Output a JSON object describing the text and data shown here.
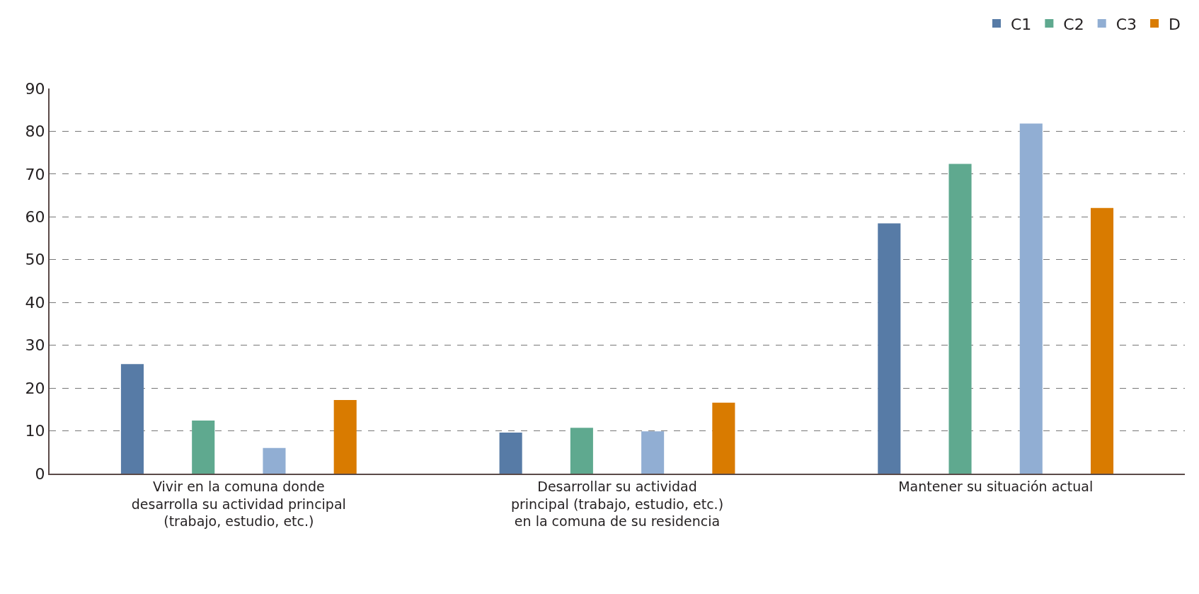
{
  "chart_data": {
    "type": "bar",
    "categories": [
      "Vivir en la comuna donde\ndesarrolla su actividad principal\n(trabajo, estudio, etc.)",
      "Desarrollar su actividad\nprincipal (trabajo, estudio, etc.)\nen la comuna de su residencia",
      "Mantener su situación actual"
    ],
    "series": [
      {
        "name": "C1",
        "color": "#577ba6",
        "values": [
          25.6,
          9.6,
          58.5
        ]
      },
      {
        "name": "C2",
        "color": "#5fa98f",
        "values": [
          12.4,
          10.7,
          72.4
        ]
      },
      {
        "name": "C3",
        "color": "#91aed3",
        "values": [
          6.0,
          9.9,
          81.8
        ]
      },
      {
        "name": "D",
        "color": "#d97b00",
        "values": [
          17.2,
          16.6,
          62.1
        ]
      }
    ],
    "ylim": [
      0,
      90
    ],
    "yticks": [
      0,
      10,
      20,
      30,
      40,
      50,
      60,
      70,
      80,
      90
    ],
    "grid": "y",
    "legend": "top right"
  }
}
